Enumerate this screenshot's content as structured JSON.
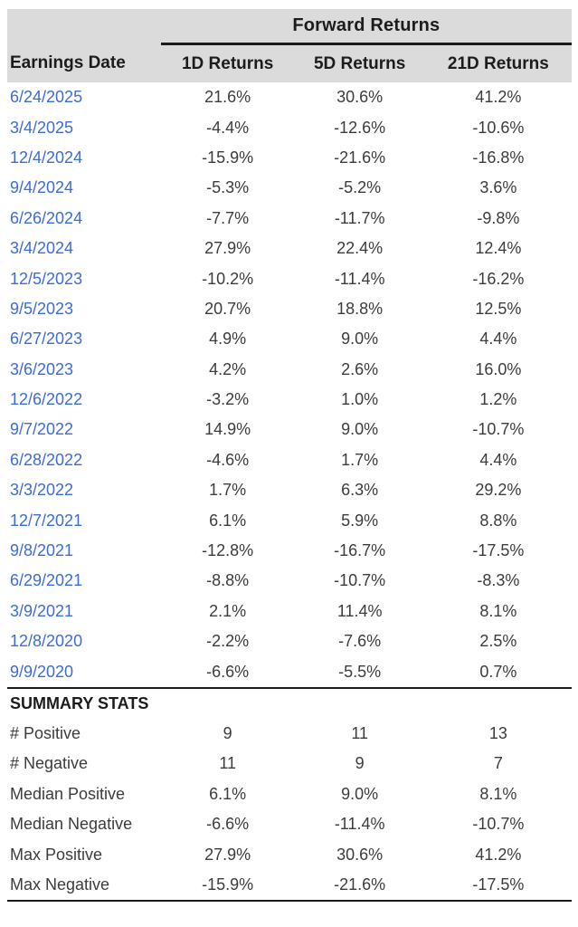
{
  "chart_data": {
    "type": "table",
    "title": "Forward Returns",
    "columns": [
      "Earnings Date",
      "1D Returns",
      "5D Returns",
      "21D Returns"
    ],
    "rows": [
      [
        "6/24/2025",
        "21.6%",
        "30.6%",
        "41.2%"
      ],
      [
        "3/4/2025",
        "-4.4%",
        "-12.6%",
        "-10.6%"
      ],
      [
        "12/4/2024",
        "-15.9%",
        "-21.6%",
        "-16.8%"
      ],
      [
        "9/4/2024",
        "-5.3%",
        "-5.2%",
        "3.6%"
      ],
      [
        "6/26/2024",
        "-7.7%",
        "-11.7%",
        "-9.8%"
      ],
      [
        "3/4/2024",
        "27.9%",
        "22.4%",
        "12.4%"
      ],
      [
        "12/5/2023",
        "-10.2%",
        "-11.4%",
        "-16.2%"
      ],
      [
        "9/5/2023",
        "20.7%",
        "18.8%",
        "12.5%"
      ],
      [
        "6/27/2023",
        "4.9%",
        "9.0%",
        "4.4%"
      ],
      [
        "3/6/2023",
        "4.2%",
        "2.6%",
        "16.0%"
      ],
      [
        "12/6/2022",
        "-3.2%",
        "1.0%",
        "1.2%"
      ],
      [
        "9/7/2022",
        "14.9%",
        "9.0%",
        "-10.7%"
      ],
      [
        "6/28/2022",
        "-4.6%",
        "1.7%",
        "4.4%"
      ],
      [
        "3/3/2022",
        "1.7%",
        "6.3%",
        "29.2%"
      ],
      [
        "12/7/2021",
        "6.1%",
        "5.9%",
        "8.8%"
      ],
      [
        "9/8/2021",
        "-12.8%",
        "-16.7%",
        "-17.5%"
      ],
      [
        "6/29/2021",
        "-8.8%",
        "-10.7%",
        "-8.3%"
      ],
      [
        "3/9/2021",
        "2.1%",
        "11.4%",
        "8.1%"
      ],
      [
        "12/8/2020",
        "-2.2%",
        "-7.6%",
        "2.5%"
      ],
      [
        "9/9/2020",
        "-6.6%",
        "-5.5%",
        "0.7%"
      ]
    ],
    "summary_title": "SUMMARY STATS",
    "summary_rows": [
      [
        "# Positive",
        "9",
        "11",
        "13"
      ],
      [
        "# Negative",
        "11",
        "9",
        "7"
      ],
      [
        "Median Positive",
        "6.1%",
        "9.0%",
        "8.1%"
      ],
      [
        "Median Negative",
        "-6.6%",
        "-11.4%",
        "-10.7%"
      ],
      [
        "Max Positive",
        "27.9%",
        "30.6%",
        "41.2%"
      ],
      [
        "Max Negative",
        "-15.9%",
        "-21.6%",
        "-17.5%"
      ]
    ]
  },
  "colors": {
    "header_bg": "#dbdbdb",
    "header_text": "#1c1c1e",
    "body_text": "#3c3c3e",
    "date_link": "#3c6cd6",
    "rule": "#1a1a1a"
  }
}
